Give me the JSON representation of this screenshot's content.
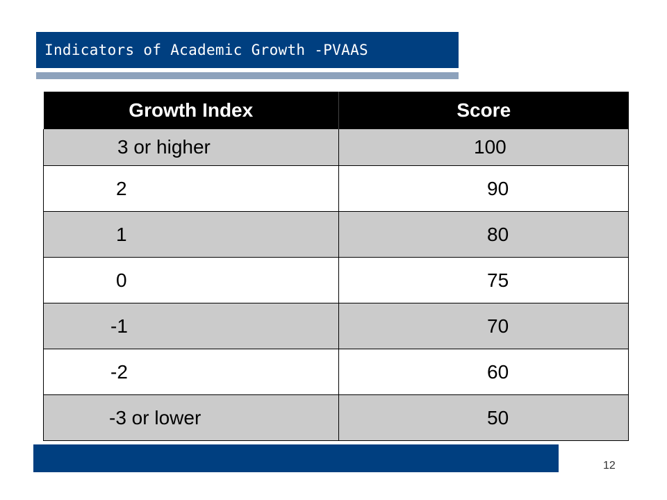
{
  "slide": {
    "title": "Indicators of Academic Growth -PVAAS",
    "page_number": "12"
  },
  "table": {
    "headers": [
      "Growth Index",
      "Score"
    ],
    "rows": [
      {
        "index": "3 or higher",
        "score": "100"
      },
      {
        "index": "2",
        "score": "90"
      },
      {
        "index": "1",
        "score": "80"
      },
      {
        "index": "0",
        "score": "75"
      },
      {
        "index": "-1",
        "score": "70"
      },
      {
        "index": "-2",
        "score": "60"
      },
      {
        "index": "-3 or lower",
        "score": "50"
      }
    ]
  },
  "colors": {
    "title_bar": "#003f80",
    "title_underline": "#8da2bc",
    "header_bg": "#000000",
    "shaded_row": "#cbcbcb",
    "footer_bar": "#003f80"
  }
}
